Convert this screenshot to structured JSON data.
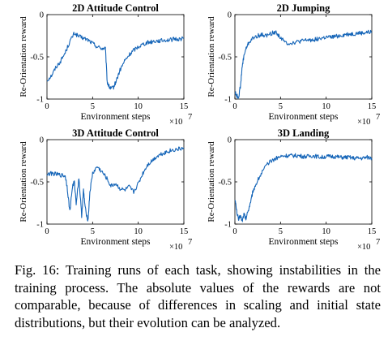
{
  "caption": "Fig. 16: Training runs of each task, showing instabilities in the training process. The absolute values of the rewards are not comparable, because of differences in scaling and initial state distributions, but their evolution can be analyzed.",
  "chart_data": [
    {
      "type": "line",
      "title": "2D Attitude Control",
      "xlabel": "Environment steps",
      "ylabel": "Re-Orientation reward",
      "x_multiplier_label": "×10",
      "x_exponent": "7",
      "xlim": [
        0,
        15
      ],
      "ylim": [
        -1,
        0
      ],
      "xticks": [
        "0",
        "5",
        "10",
        "15"
      ],
      "yticks": [
        "0",
        "-0.5",
        "-1"
      ],
      "line_color": "#1565b8",
      "x": [
        0,
        0.5,
        1,
        1.5,
        2,
        2.5,
        3,
        3.5,
        4,
        4.5,
        5,
        5.5,
        6,
        6.4,
        6.6,
        6.8,
        7,
        7.3,
        7.6,
        8,
        8.5,
        9,
        9.5,
        10,
        10.5,
        11,
        11.5,
        12,
        12.5,
        13,
        13.5,
        14,
        14.5,
        15
      ],
      "y": [
        -0.78,
        -0.72,
        -0.62,
        -0.55,
        -0.45,
        -0.32,
        -0.22,
        -0.26,
        -0.28,
        -0.3,
        -0.34,
        -0.38,
        -0.4,
        -0.4,
        -0.8,
        -0.85,
        -0.88,
        -0.86,
        -0.78,
        -0.66,
        -0.55,
        -0.48,
        -0.42,
        -0.38,
        -0.35,
        -0.33,
        -0.32,
        -0.31,
        -0.31,
        -0.3,
        -0.3,
        -0.29,
        -0.29,
        -0.28
      ]
    },
    {
      "type": "line",
      "title": "2D Jumping",
      "xlabel": "Environment steps",
      "ylabel": "Re-Orientation reward",
      "x_multiplier_label": "×10",
      "x_exponent": "7",
      "xlim": [
        0,
        15
      ],
      "ylim": [
        -1,
        0
      ],
      "xticks": [
        "0",
        "5",
        "10",
        "15"
      ],
      "yticks": [
        "0",
        "-0.5",
        "-1"
      ],
      "line_color": "#1565b8",
      "x": [
        0,
        0.2,
        0.4,
        0.6,
        0.8,
        1,
        1.3,
        1.6,
        2,
        2.5,
        3,
        3.5,
        4,
        4.5,
        5,
        5.5,
        6,
        6.5,
        7,
        7.5,
        8,
        8.5,
        9,
        9.5,
        10,
        10.5,
        11,
        11.5,
        12,
        12.5,
        13,
        13.5,
        14,
        14.5,
        15
      ],
      "y": [
        -0.92,
        -0.96,
        -0.98,
        -0.85,
        -0.62,
        -0.48,
        -0.38,
        -0.32,
        -0.28,
        -0.25,
        -0.24,
        -0.25,
        -0.22,
        -0.21,
        -0.27,
        -0.33,
        -0.34,
        -0.33,
        -0.32,
        -0.31,
        -0.3,
        -0.3,
        -0.29,
        -0.28,
        -0.27,
        -0.27,
        -0.26,
        -0.25,
        -0.24,
        -0.23,
        -0.23,
        -0.22,
        -0.22,
        -0.21,
        -0.21
      ]
    },
    {
      "type": "line",
      "title": "3D Attitude Control",
      "xlabel": "Environment steps",
      "ylabel": "Re-Orientation reward",
      "x_multiplier_label": "×10",
      "x_exponent": "7",
      "xlim": [
        0,
        15
      ],
      "ylim": [
        -1,
        0
      ],
      "xticks": [
        "0",
        "5",
        "10",
        "15"
      ],
      "yticks": [
        "0",
        "-0.5",
        "-1"
      ],
      "line_color": "#1565b8",
      "x": [
        0,
        0.5,
        1,
        1.5,
        2,
        2.2,
        2.5,
        2.8,
        3,
        3.2,
        3.5,
        3.8,
        4,
        4.2,
        4.5,
        4.7,
        5,
        5.5,
        6,
        6.5,
        7,
        7.5,
        8,
        8.5,
        9,
        9.5,
        10,
        10.5,
        11,
        11.5,
        12,
        12.5,
        13,
        13.5,
        14,
        14.5,
        15
      ],
      "y": [
        -0.41,
        -0.4,
        -0.41,
        -0.42,
        -0.43,
        -0.55,
        -0.85,
        -0.55,
        -0.5,
        -0.75,
        -0.45,
        -0.9,
        -0.6,
        -0.82,
        -0.96,
        -0.62,
        -0.4,
        -0.32,
        -0.38,
        -0.45,
        -0.55,
        -0.52,
        -0.58,
        -0.6,
        -0.56,
        -0.62,
        -0.52,
        -0.4,
        -0.3,
        -0.25,
        -0.2,
        -0.17,
        -0.15,
        -0.13,
        -0.12,
        -0.11,
        -0.1
      ]
    },
    {
      "type": "line",
      "title": "3D Landing",
      "xlabel": "Environment steps",
      "ylabel": "Re-Orientation reward",
      "x_multiplier_label": "×10",
      "x_exponent": "7",
      "xlim": [
        0,
        15
      ],
      "ylim": [
        -1,
        0
      ],
      "xticks": [
        "0",
        "5",
        "10",
        "15"
      ],
      "yticks": [
        "0",
        "-0.5",
        "-1"
      ],
      "line_color": "#1565b8",
      "x": [
        0,
        0.2,
        0.4,
        0.6,
        0.8,
        1,
        1.2,
        1.5,
        1.8,
        2,
        2.5,
        3,
        3.5,
        4,
        4.5,
        5,
        5.5,
        6,
        6.5,
        7,
        7.5,
        8,
        8.5,
        9,
        9.5,
        10,
        10.5,
        11,
        11.5,
        12,
        12.5,
        13,
        13.5,
        14,
        14.5,
        15
      ],
      "y": [
        -0.7,
        -0.85,
        -0.95,
        -0.9,
        -0.96,
        -0.88,
        -0.94,
        -0.82,
        -0.7,
        -0.6,
        -0.48,
        -0.38,
        -0.3,
        -0.25,
        -0.22,
        -0.2,
        -0.19,
        -0.19,
        -0.19,
        -0.19,
        -0.2,
        -0.2,
        -0.19,
        -0.2,
        -0.21,
        -0.2,
        -0.2,
        -0.2,
        -0.21,
        -0.21,
        -0.21,
        -0.22,
        -0.22,
        -0.22,
        -0.21,
        -0.22
      ]
    }
  ]
}
